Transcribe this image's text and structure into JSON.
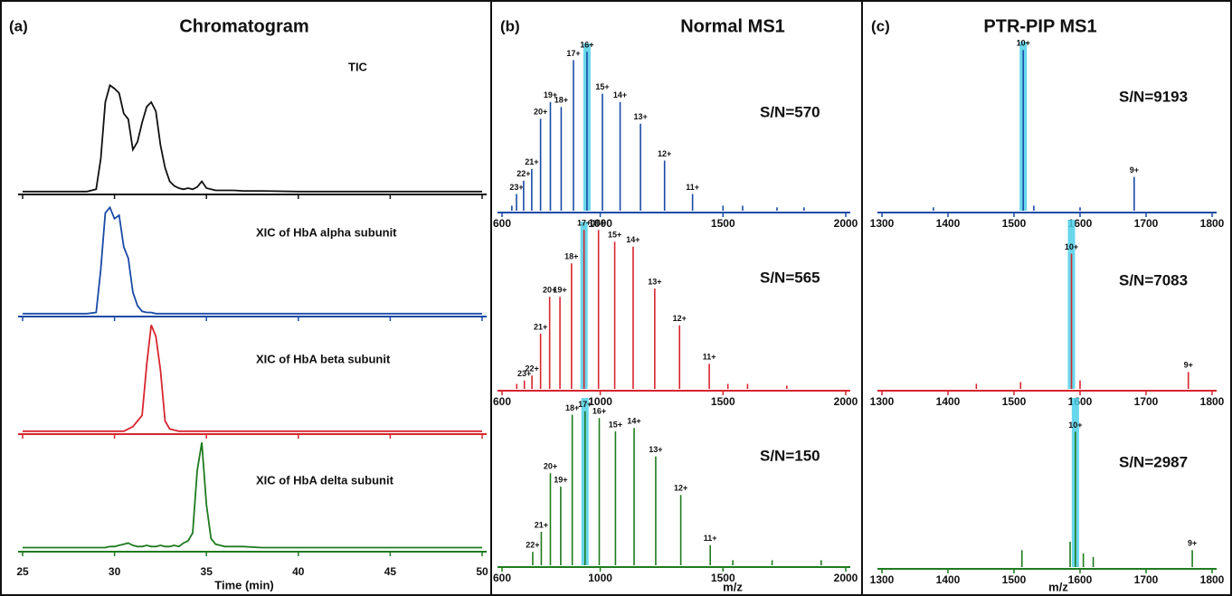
{
  "chart_data": [
    {
      "type": "line",
      "panel_label": "(a)",
      "title": "Chromatogram",
      "xlabel": "Time (min)",
      "xlim": [
        25,
        50
      ],
      "xticks": [
        25,
        30,
        35,
        40,
        45,
        50
      ],
      "ylim": [
        0,
        100
      ],
      "x": [
        25,
        26,
        27,
        28,
        28.5,
        29,
        29.25,
        29.5,
        29.75,
        30,
        30.25,
        30.5,
        30.75,
        31,
        31.25,
        31.5,
        31.75,
        32,
        32.25,
        32.5,
        32.75,
        33,
        33.25,
        33.5,
        33.75,
        34,
        34.25,
        34.5,
        34.75,
        35,
        35.25,
        35.5,
        35.75,
        36,
        36.5,
        37,
        38,
        40,
        42,
        44,
        46,
        48,
        50
      ],
      "series": [
        {
          "name": "TIC",
          "color": "#111111",
          "values": [
            1,
            1,
            1,
            1,
            1,
            3,
            30,
            80,
            95,
            92,
            88,
            70,
            65,
            38,
            45,
            62,
            76,
            80,
            72,
            42,
            22,
            10,
            6,
            4,
            3,
            4,
            3,
            5,
            10,
            4,
            3,
            2,
            2,
            2,
            2,
            1.5,
            1.5,
            1,
            1,
            1,
            1,
            1,
            1
          ]
        },
        {
          "name": "XIC of HbA alpha subunit",
          "color": "#1a4aa6",
          "values": [
            1,
            1,
            1,
            1,
            1,
            2,
            40,
            90,
            95,
            85,
            88,
            60,
            50,
            20,
            8,
            3,
            2,
            2,
            1,
            1,
            1,
            1,
            1,
            1,
            1,
            1,
            1,
            1,
            1,
            1,
            1,
            1,
            1,
            1,
            1,
            1,
            1,
            1,
            1,
            1,
            1,
            1,
            1
          ]
        },
        {
          "name": "XIC of HbA beta subunit",
          "color": "#d7262e",
          "values": [
            1,
            1,
            1,
            1,
            1,
            1,
            1,
            1,
            1,
            1,
            1,
            1,
            3,
            5,
            10,
            15,
            60,
            95,
            85,
            55,
            10,
            3,
            2,
            1,
            1,
            1,
            1,
            1,
            1,
            1,
            1,
            1,
            1,
            1,
            1,
            1,
            1,
            1,
            1,
            1,
            1,
            1,
            1
          ]
        },
        {
          "name": "XIC of HbA delta subunit",
          "color": "#1e7b1e",
          "values": [
            2,
            2,
            2,
            2,
            2,
            2,
            2,
            2,
            3,
            3,
            4,
            5,
            6,
            4,
            3,
            3,
            4,
            3,
            3,
            4,
            3,
            3,
            4,
            3,
            6,
            8,
            15,
            70,
            95,
            40,
            10,
            5,
            4,
            3,
            3,
            3,
            2,
            2,
            2,
            2,
            2,
            2,
            2
          ]
        }
      ]
    },
    {
      "type": "stem",
      "panel_label": "(b)",
      "title": "Normal  MS1",
      "xlabel": "m/z",
      "xlim": [
        600,
        2000
      ],
      "xticks": [
        600,
        1000,
        1500,
        2000
      ],
      "ylim": [
        0,
        100
      ],
      "highlight_color": "#4fd0e8",
      "series": [
        {
          "color": "#1a4aa6",
          "annotation": "S/N=570",
          "highlight_x": 946,
          "x": [
            640,
            659,
            688,
            721,
            757,
            797,
            841,
            891,
            946,
            1009,
            1081,
            1164,
            1262,
            1376,
            1500,
            1580,
            1720,
            1830
          ],
          "values": [
            3,
            10,
            18,
            25,
            55,
            65,
            62,
            90,
            95,
            70,
            65,
            52,
            30,
            10,
            3,
            3,
            2,
            2
          ],
          "peak_labels": [
            null,
            "23+",
            "22+",
            "21+",
            "20+",
            "19+",
            "18+",
            "17+",
            "16+",
            "15+",
            "14+",
            "13+",
            "12+",
            "11+",
            null,
            null,
            null,
            null
          ]
        },
        {
          "color": "#d7262e",
          "annotation": "S/N=565",
          "highlight_x": 934,
          "x": [
            660,
            691,
            722,
            757,
            794,
            836,
            883,
            934,
            993,
            1059,
            1134,
            1222,
            1323,
            1444,
            1520,
            1600,
            1760
          ],
          "values": [
            3,
            5,
            8,
            33,
            55,
            55,
            75,
            95,
            95,
            88,
            85,
            60,
            38,
            15,
            3,
            3,
            2
          ],
          "peak_labels": [
            null,
            "23+",
            "22+",
            "21+",
            "20+",
            "19+",
            "18+",
            "17+",
            "16+",
            "15+",
            "14+",
            "13+",
            "12+",
            "11+",
            null,
            null,
            null
          ]
        },
        {
          "color": "#1e7b1e",
          "annotation": "S/N=150",
          "highlight_x": 938,
          "x": [
            725,
            760,
            797,
            839,
            886,
            938,
            996,
            1062,
            1138,
            1226,
            1328,
            1448,
            1540,
            1700,
            1900
          ],
          "values": [
            8,
            20,
            55,
            47,
            90,
            92,
            88,
            80,
            82,
            65,
            42,
            12,
            3,
            3,
            3
          ],
          "peak_labels": [
            "22+",
            "21+",
            "20+",
            "19+",
            "18+",
            "17+",
            "16+",
            "15+",
            "14+",
            "13+",
            "12+",
            "11+",
            null,
            null,
            null
          ]
        }
      ]
    },
    {
      "type": "stem",
      "panel_label": "(c)",
      "title": "PTR-PIP MS1",
      "xlabel": "m/z",
      "xlim": [
        1300,
        1800
      ],
      "xticks": [
        1300,
        1400,
        1500,
        1600,
        1700,
        1800
      ],
      "ylim": [
        0,
        100
      ],
      "highlight_color": "#4fd0e8",
      "series": [
        {
          "color": "#1a4aa6",
          "annotation": "S/N=9193",
          "highlight_x": 1514,
          "x": [
            1378,
            1514,
            1530,
            1600,
            1682
          ],
          "values": [
            2,
            95,
            3,
            2,
            20
          ],
          "peak_labels": [
            null,
            "10+",
            null,
            null,
            "9+"
          ]
        },
        {
          "color": "#d7262e",
          "annotation": "S/N=7083",
          "highlight_x": 1587,
          "x": [
            1443,
            1510,
            1587,
            1600,
            1764
          ],
          "values": [
            3,
            4,
            80,
            5,
            10
          ],
          "peak_labels": [
            null,
            null,
            "10+",
            null,
            "9+"
          ]
        },
        {
          "color": "#1e7b1e",
          "annotation": "S/N=2987",
          "highlight_x": 1593,
          "x": [
            1512,
            1585,
            1593,
            1605,
            1620,
            1770
          ],
          "values": [
            10,
            15,
            80,
            8,
            6,
            10
          ],
          "peak_labels": [
            null,
            null,
            "10+",
            null,
            null,
            "9+"
          ]
        }
      ]
    }
  ]
}
